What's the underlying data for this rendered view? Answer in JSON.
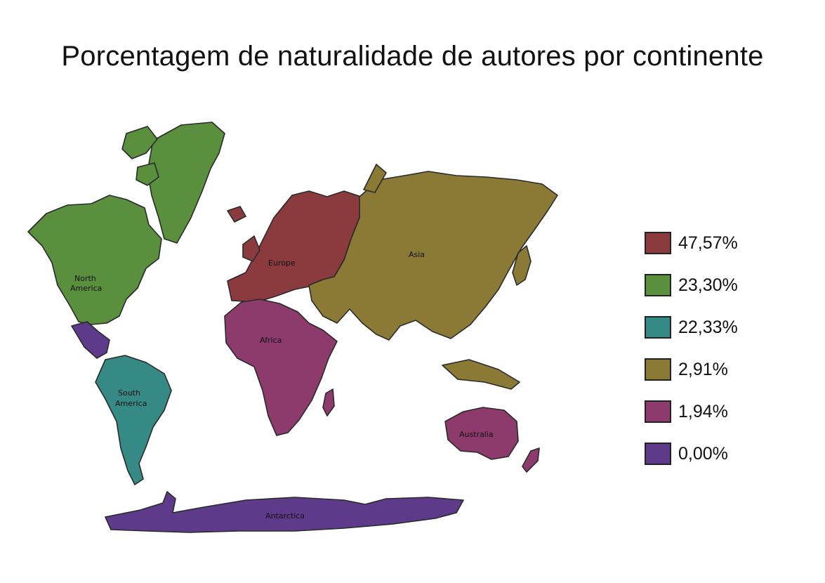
{
  "title": "Porcentagem de naturalidade de autores por continente",
  "colors": {
    "europe": "#8B3A3D",
    "north_america": "#5A8F3E",
    "south_america": "#358A85",
    "asia": "#8A7A36",
    "africa": "#8D3A6C",
    "australia": "#8D3A6C",
    "antarctica": "#5E3A8A",
    "central_america": "#5E3A8A",
    "outline": "#2a2a2a"
  },
  "map_labels": {
    "north_america": [
      "North",
      "America"
    ],
    "south_america": [
      "South",
      "America"
    ],
    "europe": "Europe",
    "asia": "Asia",
    "africa": "Africa",
    "australia": "Australia",
    "antarctica": "Antarctica"
  },
  "legend": [
    {
      "label": "47,57%",
      "color": "#8B3A3D"
    },
    {
      "label": "23,30%",
      "color": "#5A8F3E"
    },
    {
      "label": "22,33%",
      "color": "#358A85"
    },
    {
      "label": "2,91%",
      "color": "#8A7A36"
    },
    {
      "label": "1,94%",
      "color": "#8D3A6C"
    },
    {
      "label": "0,00%",
      "color": "#5E3A8A"
    }
  ]
}
